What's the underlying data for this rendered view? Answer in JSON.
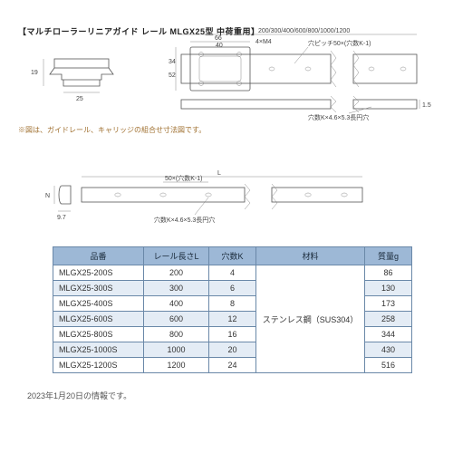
{
  "header": {
    "title": "【マルチローラーリニアガイド レール MLGX25型 中荷重用】"
  },
  "note_text": "※図は、ガイドレール、キャリッジの組合せ寸法図です。",
  "footnote_text": "2023年1月20日の情報です。",
  "top_right": {
    "length_options": "200/300/400/600/800/1000/1200",
    "dim_66": "66",
    "dim_40": "40",
    "dim_34": "34",
    "dim_52": "52",
    "screw": "4×M4",
    "pitch": "穴ピッチ50×(穴数K-1)",
    "slot": "穴数K×4.6×5.3長円穴",
    "dim_15": "1.5"
  },
  "top_left": {
    "dim_19": "19",
    "dim_25": "25"
  },
  "mid": {
    "dim_L": "L",
    "dim_pitch": "50×(穴数K-1)",
    "slot": "穴数K×4.6×5.3長円穴",
    "dim_N": "N",
    "dim_97": "9.7"
  },
  "table": {
    "headers": {
      "part": "品番",
      "length": "レール長さL",
      "holes": "穴数K",
      "material": "材料",
      "mass": "質量g"
    },
    "material": "ステンレス鋼（SUS304）",
    "rows": [
      {
        "part": "MLGX25-200S",
        "L": "200",
        "K": "4",
        "mass": "86"
      },
      {
        "part": "MLGX25-300S",
        "L": "300",
        "K": "6",
        "mass": "130"
      },
      {
        "part": "MLGX25-400S",
        "L": "400",
        "K": "8",
        "mass": "173"
      },
      {
        "part": "MLGX25-600S",
        "L": "600",
        "K": "12",
        "mass": "258"
      },
      {
        "part": "MLGX25-800S",
        "L": "800",
        "K": "16",
        "mass": "344"
      },
      {
        "part": "MLGX25-1000S",
        "L": "1000",
        "K": "20",
        "mass": "430"
      },
      {
        "part": "MLGX25-1200S",
        "L": "1200",
        "K": "24",
        "mass": "516"
      }
    ]
  },
  "style": {
    "table_header_bg": "#9db8d6",
    "table_row_alt_bg": "#e4ecf5",
    "table_border": "#6a88a8",
    "note_color": "#a07030"
  }
}
